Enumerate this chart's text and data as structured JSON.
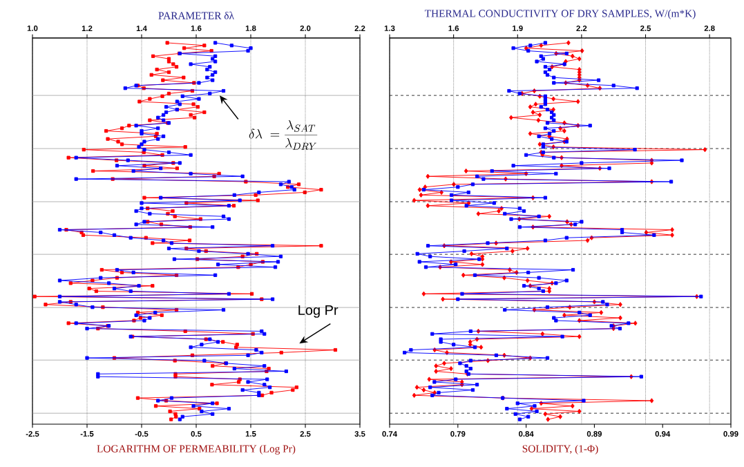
{
  "chart_data": [
    {
      "type": "line",
      "orientation": "horizontal",
      "xlabel": "LOGARITHM OF PERMEABILITY (Log Pr)",
      "x2label": "PARAMETER δλ",
      "xlim": [
        -2.5,
        3.5
      ],
      "xticks": [
        -2.5,
        -1.5,
        -0.5,
        0.5,
        1.5,
        2.5,
        3.5
      ],
      "x2lim": [
        1.0,
        2.2
      ],
      "x2ticks": [
        {
          "value": 1.0,
          "label": "1.0"
        },
        1.2,
        1.4,
        1.6,
        1.8,
        {
          "value": 2.0,
          "label": "2.0"
        },
        2.2
      ],
      "grid": "x",
      "tick_labels": "x",
      "annotations": [
        "Log Pr",
        "\\delta\\lambda\\; = \\frac{\\lambda_{SAT}}{\\lambda_{DRY}}"
      ],
      "categories": [
        null,
        null,
        null,
        null,
        null,
        null,
        null,
        null,
        null,
        null,
        null,
        null,
        null,
        null,
        null,
        null,
        null,
        null,
        null,
        null,
        null,
        null,
        null,
        null,
        null,
        null,
        null,
        null,
        null,
        null,
        null,
        null,
        null,
        null,
        null,
        null,
        null,
        null,
        null,
        null,
        null,
        null,
        null,
        null,
        null,
        null,
        null,
        null,
        null,
        null,
        null,
        null,
        null,
        null,
        null,
        null,
        null,
        null,
        null,
        null,
        null,
        null,
        null,
        null,
        null,
        null,
        null,
        null,
        null,
        null,
        null,
        null,
        null,
        null,
        null,
        null,
        null,
        null,
        null,
        null,
        null,
        null,
        null,
        null,
        null,
        null,
        null,
        null,
        null,
        null,
        null,
        null,
        null,
        null,
        null,
        null,
        null,
        null,
        null,
        null,
        null,
        null,
        null,
        null,
        null,
        null,
        null,
        null,
        null,
        null,
        null,
        null,
        null,
        null,
        null,
        null,
        null,
        null,
        null,
        null,
        null,
        null,
        null,
        null,
        null,
        null,
        null,
        null,
        null,
        null,
        null,
        null,
        null,
        null,
        null,
        null,
        null,
        null,
        null,
        null,
        null,
        null
      ],
      "series": [
        {
          "color": "#ff0000",
          "marker": "square",
          "values": [
            -0.03,
            0.65,
            0.28,
            0.78,
            0.19,
            -0.29,
            0.0,
            0.0,
            0.08,
            0.14,
            -0.22,
            0.0,
            -0.32,
            0.27,
            -0.11,
            0.46,
            -0.57,
            -0.46,
            0.43,
            0.0,
            -0.12,
            -0.35,
            -0.54,
            0.45,
            0.53,
            0.15,
            0.65,
            0.4,
            0.47,
            -0.35,
            -0.02,
            -0.73,
            -0.86,
            -1.15,
            -0.22,
            -0.24,
            -1.12,
            -0.93,
            -0.86,
            0.3,
            -1.56,
            -0.46,
            -0.12,
            -1.84,
            -0.96,
            0.08,
            -0.45,
            0.15,
            -1.39,
            0.92,
            0.83,
            -1.03,
            1.41,
            2.38,
            2.18,
            2.79,
            2.49,
            1.59,
            -0.45,
            1.63,
            0.32,
            1.19,
            -0.39,
            0.07,
            -0.02,
            0.11,
            0.58,
            -0.39,
            -0.14,
            0.39,
            -1.88,
            -1.6,
            -1.57,
            -0.42,
            0.38,
            -0.3,
            2.79,
            0.32,
            0.68,
            1.61,
            1.35,
            0.52,
            1.72,
            1.5,
            1.27,
            -1.23,
            -0.86,
            0.14,
            -0.95,
            -1.4,
            -1.8,
            -0.3,
            -1.46,
            -1.33,
            1.52,
            -2.46,
            1.7,
            -1.8,
            -2.26,
            -1.21,
            0.14,
            -0.57,
            -0.13,
            -0.52,
            -0.64,
            -1.84,
            -1.12,
            -1.3,
            0.3,
            1.54,
            -0.67,
            0.68,
            0.99,
            1.25,
            1.23,
            3.05,
            2.06,
            0.43,
            -1.0,
            0.11,
            1.04,
            0.8,
            1.83,
            1.79,
            0.12,
            0.12,
            1.3,
            1.28,
            0.79,
            2.34,
            2.27,
            1.88,
            1.71,
            -0.57,
            -0.05,
            0.88,
            -0.24,
            0.56,
            0.02,
            0.12,
            0.13,
            0.04
          ]
        },
        {
          "color": "#0000ff",
          "marker": "square",
          "axis": "x2",
          "values": [
            1.67,
            1.73,
            1.8,
            1.79,
            1.54,
            1.67,
            1.66,
            1.67,
            1.58,
            1.65,
            1.64,
            1.67,
            1.66,
            1.64,
            1.66,
            1.61,
            1.38,
            1.34,
            1.7,
            1.65,
            1.55,
            1.61,
            1.53,
            1.54,
            1.49,
            1.53,
            1.49,
            1.48,
            1.46,
            1.48,
            1.5,
            1.38,
            1.46,
            1.4,
            1.4,
            1.48,
            1.46,
            1.41,
            1.4,
            1.39,
            1.41,
            1.5,
            1.58,
            1.16,
            1.35,
            1.54,
            1.31,
            1.47,
            1.37,
            1.58,
            1.77,
            1.16,
            1.94,
            1.91,
            1.95,
            1.96,
            1.83,
            1.74,
            1.47,
            1.76,
            1.4,
            1.72,
            1.4,
            1.38,
            1.43,
            1.7,
            1.72,
            1.41,
            1.38,
            1.66,
            1.1,
            1.25,
            1.3,
            1.36,
            1.48,
            1.51,
            1.88,
            1.5,
            1.61,
            1.79,
            1.91,
            1.52,
            1.9,
            1.68,
            1.89,
            1.31,
            1.37,
            1.67,
            1.25,
            1.1,
            1.28,
            1.39,
            1.3,
            1.36,
            1.72,
            1.1,
            1.88,
            1.1,
            1.16,
            1.22,
            1.7,
            1.45,
            1.38,
            1.43,
            1.41,
            1.16,
            1.28,
            1.2,
            1.84,
            1.85,
            1.36,
            1.65,
            1.68,
            1.62,
            1.58,
            1.82,
            1.84,
            1.79,
            1.2,
            1.63,
            1.71,
            1.85,
            1.74,
            1.93,
            1.24,
            1.24,
            1.86,
            1.79,
            1.85,
            1.87,
            1.77,
            1.83,
            1.83,
            1.51,
            1.46,
            1.66,
            1.59,
            1.72,
            1.62,
            1.66,
            1.55,
            1.54
          ]
        }
      ]
    },
    {
      "type": "line",
      "orientation": "horizontal",
      "xlabel": "SOLIDITY, (1-Φ)",
      "x2label": "THERMAL CONDUCTIVITY OF DRY SAMPLES, W/(m*K)",
      "xlim": [
        0.74,
        0.99
      ],
      "xticks": [
        0.74,
        0.79,
        0.84,
        0.89,
        0.94,
        0.99
      ],
      "x2lim": [
        1.3,
        2.9
      ],
      "x2ticks": [
        1.3,
        1.6,
        1.9,
        2.2,
        2.5,
        2.8
      ],
      "grid": "x",
      "tick_labels": "x",
      "categories": [
        null,
        null,
        null,
        null,
        null,
        null,
        null,
        null,
        null,
        null,
        null,
        null,
        null,
        null,
        null,
        null,
        null,
        null,
        null,
        null,
        null,
        null,
        null,
        null,
        null,
        null,
        null,
        null,
        null,
        null,
        null,
        null,
        null,
        null,
        null,
        null,
        null,
        null,
        null,
        null,
        null,
        null,
        null,
        null,
        null,
        null,
        null,
        null,
        null,
        null,
        null,
        null,
        null,
        null,
        null,
        null,
        null,
        null,
        null,
        null,
        null,
        null,
        null,
        null,
        null,
        null,
        null,
        null,
        null,
        null,
        null,
        null,
        null,
        null,
        null,
        null,
        null,
        null,
        null,
        null,
        null,
        null,
        null,
        null,
        null,
        null,
        null,
        null,
        null,
        null,
        null,
        null,
        null,
        null,
        null,
        null,
        null,
        null,
        null,
        null,
        null,
        null,
        null,
        null,
        null,
        null,
        null,
        null,
        null,
        null,
        null,
        null,
        null,
        null,
        null,
        null,
        null,
        null,
        null,
        null,
        null,
        null,
        null,
        null,
        null,
        null,
        null,
        null,
        null,
        null,
        null,
        null,
        null,
        null,
        null,
        null,
        null,
        null,
        null,
        null,
        null,
        null
      ],
      "series": [
        {
          "color": "#ff0000",
          "marker": "diamond",
          "values": [
            0.871,
            0.851,
            0.84,
            0.881,
            0.862,
            0.874,
            0.879,
            0.869,
            0.868,
            0.859,
            0.879,
            0.879,
            0.879,
            0.879,
            0.879,
            0.869,
            0.885,
            0.894,
            0.846,
            0.837,
            0.85,
            0.86,
            0.878,
            0.847,
            0.843,
            0.86,
            0.845,
            0.85,
            0.829,
            0.849,
            0.868,
            0.878,
            0.865,
            0.868,
            0.843,
            0.857,
            0.87,
            0.868,
            0.85,
            0.86,
            0.971,
            0.851,
            0.852,
            0.866,
            0.932,
            0.932,
            0.866,
            0.894,
            0.796,
            0.84,
            0.768,
            0.825,
            0.932,
            0.787,
            0.766,
            0.762,
            0.778,
            0.763,
            0.845,
            0.758,
            0.798,
            0.768,
            0.822,
            0.82,
            0.805,
            0.857,
            0.835,
            0.87,
            0.873,
            0.845,
            0.947,
            0.928,
            0.947,
            0.888,
            0.885,
            0.818,
            0.78,
            0.841,
            0.83,
            0.8,
            0.808,
            0.808,
            0.785,
            0.808,
            0.777,
            0.828,
            0.833,
            0.794,
            0.824,
            0.841,
            0.859,
            0.843,
            0.857,
            0.857,
            0.765,
            0.965,
            0.779,
            0.89,
            0.909,
            0.872,
            0.846,
            0.895,
            0.868,
            0.909,
            0.879,
            0.92,
            0.904,
            0.904,
            0.805,
            0.852,
            0.879,
            0.804,
            0.799,
            0.799,
            0.807,
            0.773,
            0.782,
            0.824,
            0.843,
            0.812,
            0.78,
            0.774,
            0.785,
            0.774,
            0.797,
            0.917,
            0.769,
            0.793,
            0.793,
            0.76,
            0.765,
            0.773,
            0.758,
            0.823,
            0.932,
            0.851,
            0.874,
            0.844,
            0.879,
            0.854,
            0.865,
            0.856
          ]
        },
        {
          "color": "#0000ff",
          "marker": "square",
          "axis": "x2",
          "values": [
            2.03,
            1.96,
            1.88,
            1.95,
            2.13,
            2.01,
            2.02,
            1.99,
            2.12,
            2.03,
            2.05,
            2.03,
            2.04,
            2.07,
            2.28,
            2.07,
            2.35,
            2.46,
            1.86,
            1.91,
            2.03,
            2.03,
            2.03,
            2.03,
            2.01,
            2.04,
            2.06,
            2.07,
            2.06,
            2.07,
            2.04,
            2.24,
            2.03,
            2.07,
            2.05,
            2.0,
            2.06,
            2.13,
            2.02,
            2.02,
            2.45,
            2.02,
            1.94,
            2.07,
            2.67,
            2.2,
            1.88,
            2.33,
            1.78,
            2.08,
            1.71,
            1.74,
            2.62,
            1.69,
            1.62,
            1.46,
            1.67,
            1.59,
            2.03,
            1.59,
            1.79,
            1.66,
            1.91,
            1.93,
            1.84,
            2.0,
            1.87,
            2.2,
            2.17,
            1.91,
            2.39,
            2.39,
            2.54,
            2.13,
            2.03,
            1.76,
            1.48,
            1.85,
            1.65,
            1.43,
            1.49,
            1.72,
            1.44,
            1.61,
            1.47,
            2.16,
            1.95,
            1.7,
            2.0,
            2.13,
            2.08,
            1.93,
            2.0,
            2.02,
            1.64,
            2.76,
            1.62,
            2.3,
            2.32,
            2.04,
            1.84,
            2.19,
            2.24,
            2.07,
            2.08,
            2.42,
            2.34,
            2.38,
            1.68,
            1.5,
            2.11,
            1.54,
            1.54,
            1.6,
            1.7,
            1.4,
            1.37,
            1.8,
            2.04,
            1.68,
            1.63,
            1.66,
            1.68,
            1.66,
            1.67,
            2.48,
            1.61,
            1.51,
            1.71,
            1.49,
            1.69,
            1.53,
            1.5,
            1.83,
            2.21,
            1.9,
            1.98,
            1.85,
            1.99,
            1.89,
            1.95,
            1.91
          ]
        }
      ]
    }
  ]
}
